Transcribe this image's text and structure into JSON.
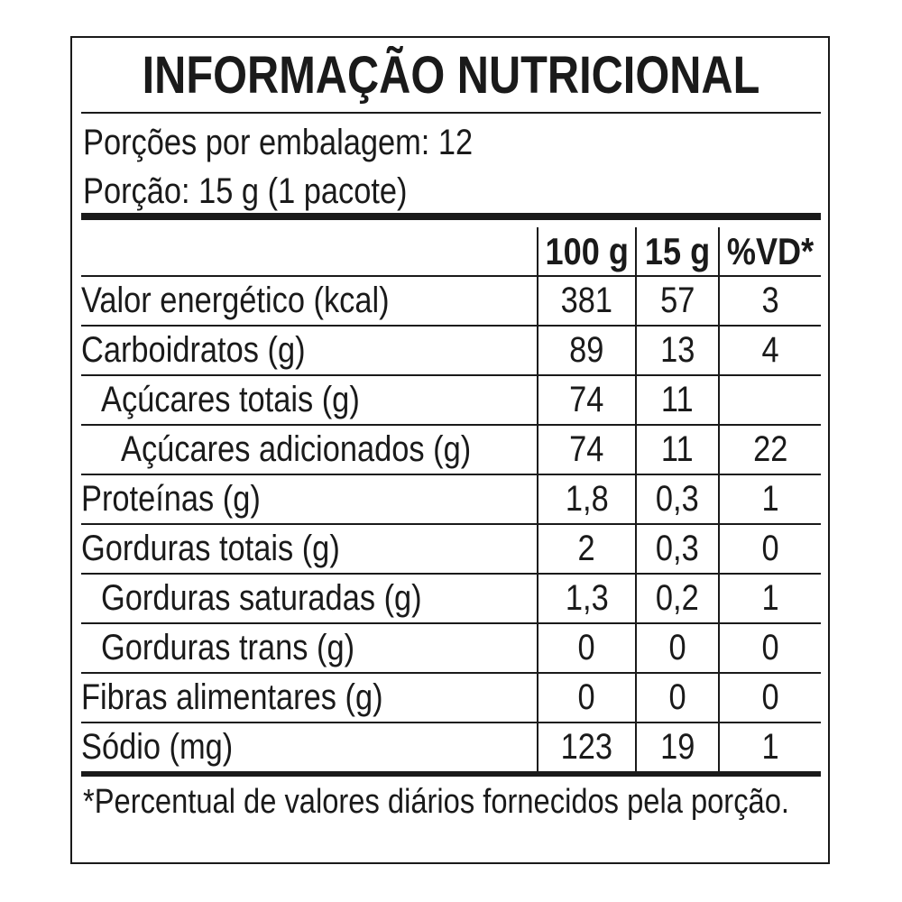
{
  "title": "INFORMAÇÃO NUTRICIONAL",
  "servings_per_package": "Porções por embalagem: 12",
  "serving_size": "Porção: 15 g (1 pacote)",
  "columns": [
    "",
    "100 g",
    "15 g",
    "%VD*"
  ],
  "rows": [
    {
      "label": "Valor energético (kcal)",
      "indent": 0,
      "v100": "381",
      "v15": "57",
      "vd": "3"
    },
    {
      "label": "Carboidratos (g)",
      "indent": 0,
      "v100": "89",
      "v15": "13",
      "vd": "4"
    },
    {
      "label": "Açúcares totais (g)",
      "indent": 1,
      "v100": "74",
      "v15": "11",
      "vd": ""
    },
    {
      "label": "Açúcares adicionados (g)",
      "indent": 2,
      "v100": "74",
      "v15": "11",
      "vd": "22"
    },
    {
      "label": "Proteínas (g)",
      "indent": 0,
      "v100": "1,8",
      "v15": "0,3",
      "vd": "1"
    },
    {
      "label": "Gorduras totais (g)",
      "indent": 0,
      "v100": "2",
      "v15": "0,3",
      "vd": "0"
    },
    {
      "label": "Gorduras saturadas (g)",
      "indent": 1,
      "v100": "1,3",
      "v15": "0,2",
      "vd": "1"
    },
    {
      "label": "Gorduras trans (g)",
      "indent": 1,
      "v100": "0",
      "v15": "0",
      "vd": "0"
    },
    {
      "label": "Fibras alimentares (g)",
      "indent": 0,
      "v100": "0",
      "v15": "0",
      "vd": "0"
    },
    {
      "label": "Sódio (mg)",
      "indent": 0,
      "v100": "123",
      "v15": "19",
      "vd": "1"
    }
  ],
  "footnote": "*Percentual de valores diários fornecidos pela porção."
}
